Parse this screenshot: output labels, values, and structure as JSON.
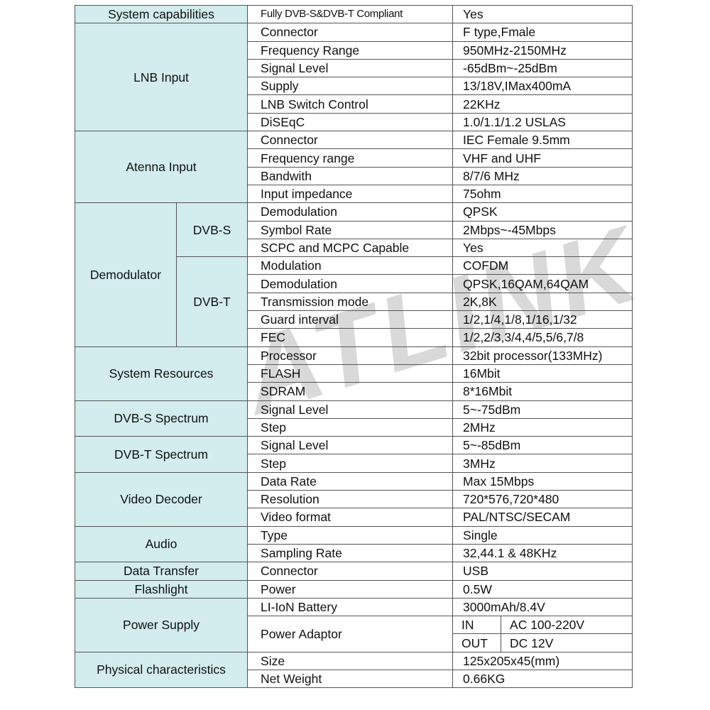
{
  "watermark": "SATLINK",
  "sections": [
    {
      "label": "System capabilities",
      "rows": [
        {
          "name": "Fully DVB-S&DVB-T Compliant",
          "value": "Yes"
        }
      ]
    },
    {
      "label": "LNB Input",
      "rows": [
        {
          "name": "Connector",
          "value": "F type,Fmale"
        },
        {
          "name": "Frequency Range",
          "value": "950MHz-2150MHz"
        },
        {
          "name": "Signal Level",
          "value": "-65dBm~-25dBm"
        },
        {
          "name": "Supply",
          "value": "13/18V,IMax400mA"
        },
        {
          "name": "LNB Switch Control",
          "value": "22KHz"
        },
        {
          "name": "DiSEqC",
          "value": "1.0/1.1/1.2 USLAS"
        }
      ]
    },
    {
      "label": "Atenna Input",
      "rows": [
        {
          "name": "Connector",
          "value": "IEC Female 9.5mm"
        },
        {
          "name": "Frequency range",
          "value": "VHF and UHF"
        },
        {
          "name": "Bandwith",
          "value": "8/7/6 MHz"
        },
        {
          "name": "Input impedance",
          "value": "75ohm"
        }
      ]
    },
    {
      "label": "Demodulator",
      "subgroups": [
        {
          "label": "DVB-S",
          "rows": [
            {
              "name": "Demodulation",
              "value": "QPSK"
            },
            {
              "name": "Symbol Rate",
              "value": "2Mbps~-45Mbps"
            },
            {
              "name": "SCPC and MCPC Capable",
              "value": "Yes"
            }
          ]
        },
        {
          "label": "DVB-T",
          "rows": [
            {
              "name": "Modulation",
              "value": "COFDM"
            },
            {
              "name": "Demodulation",
              "value": "QPSK,16QAM,64QAM"
            },
            {
              "name": "Transmission mode",
              "value": "2K,8K"
            },
            {
              "name": "Guard interval",
              "value": "1/2,1/4,1/8,1/16,1/32"
            },
            {
              "name": "FEC",
              "value": "1/2,2/3,3/4,4/5,5/6,7/8"
            }
          ]
        }
      ]
    },
    {
      "label": "System Resources",
      "rows": [
        {
          "name": "Processor",
          "value": "32bit processor(133MHz)"
        },
        {
          "name": "FLASH",
          "value": "16Mbit"
        },
        {
          "name": "SDRAM",
          "value": "8*16Mbit"
        }
      ]
    },
    {
      "label": "DVB-S Spectrum",
      "rows": [
        {
          "name": "Signal Level",
          "value": "5~-75dBm"
        },
        {
          "name": "Step",
          "value": "2MHz"
        }
      ]
    },
    {
      "label": "DVB-T Spectrum",
      "rows": [
        {
          "name": "Signal Level",
          "value": "5~-85dBm"
        },
        {
          "name": "Step",
          "value": "3MHz"
        }
      ]
    },
    {
      "label": "Video Decoder",
      "rows": [
        {
          "name": "Data Rate",
          "value": "Max 15Mbps"
        },
        {
          "name": "Resolution",
          "value": "720*576,720*480"
        },
        {
          "name": "Video format",
          "value": "PAL/NTSC/SECAM"
        }
      ]
    },
    {
      "label": "Audio",
      "rows": [
        {
          "name": "Type",
          "value": "Single"
        },
        {
          "name": "Sampling Rate",
          "value": "32,44.1 & 48KHz"
        }
      ]
    },
    {
      "label": "Data Transfer",
      "rows": [
        {
          "name": "Connector",
          "value": "USB"
        }
      ]
    },
    {
      "label": "Flashlight",
      "rows": [
        {
          "name": "Power",
          "value": "0.5W"
        }
      ]
    },
    {
      "label": "Power Supply",
      "rows": [
        {
          "name": "LI-IoN Battery",
          "value": "3000mAh/8.4V"
        },
        {
          "name": "Power Adaptor",
          "split": [
            {
              "key": "IN",
              "value": "AC 100-220V"
            },
            {
              "key": "OUT",
              "value": "DC 12V"
            }
          ]
        }
      ]
    },
    {
      "label": "Physical characteristics",
      "rows": [
        {
          "name": "Size",
          "value": "125x205x45(mm)"
        },
        {
          "name": "Net Weight",
          "value": "0.66KG"
        }
      ]
    }
  ]
}
